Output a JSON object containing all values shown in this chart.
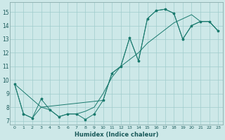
{
  "xlabel": "Humidex (Indice chaleur)",
  "xlim": [
    -0.5,
    23.5
  ],
  "ylim": [
    6.7,
    15.7
  ],
  "yticks": [
    7,
    8,
    9,
    10,
    11,
    12,
    13,
    14,
    15
  ],
  "xticks": [
    0,
    1,
    2,
    3,
    4,
    5,
    6,
    7,
    8,
    9,
    10,
    11,
    12,
    13,
    14,
    15,
    16,
    17,
    18,
    19,
    20,
    21,
    22,
    23
  ],
  "bg_color": "#cde8e8",
  "grid_color": "#a0cccc",
  "line_color": "#1a7a6e",
  "line1_x": [
    0,
    1,
    2,
    3,
    4,
    5,
    6,
    7,
    8,
    9,
    10,
    11,
    12,
    13,
    14,
    15,
    16,
    17,
    18,
    19,
    20,
    21,
    22,
    23
  ],
  "line1_y": [
    9.7,
    7.5,
    7.2,
    8.6,
    7.8,
    7.3,
    7.5,
    7.5,
    7.1,
    7.5,
    8.5,
    10.5,
    11.0,
    13.1,
    11.4,
    14.5,
    15.1,
    15.2,
    14.9,
    13.0,
    14.0,
    14.3,
    14.3,
    13.6
  ],
  "line2_x": [
    0,
    3,
    10,
    11,
    12,
    13,
    14,
    15,
    16,
    17,
    18,
    19,
    20,
    21,
    22,
    23
  ],
  "line2_y": [
    9.7,
    8.0,
    8.5,
    10.5,
    11.0,
    13.1,
    11.4,
    14.5,
    15.1,
    15.2,
    14.9,
    13.0,
    14.0,
    14.3,
    14.3,
    13.6
  ],
  "line3_x": [
    0,
    1,
    2,
    3,
    4,
    5,
    6,
    7,
    8,
    9,
    10,
    11,
    12,
    13,
    14,
    15,
    16,
    17,
    18,
    19,
    20,
    21,
    22,
    23
  ],
  "line3_y": [
    9.7,
    7.5,
    7.2,
    8.0,
    7.8,
    7.3,
    7.5,
    7.5,
    7.7,
    8.0,
    9.0,
    10.2,
    11.0,
    11.5,
    12.0,
    12.7,
    13.2,
    13.7,
    14.2,
    14.5,
    14.8,
    14.3,
    14.3,
    13.6
  ]
}
